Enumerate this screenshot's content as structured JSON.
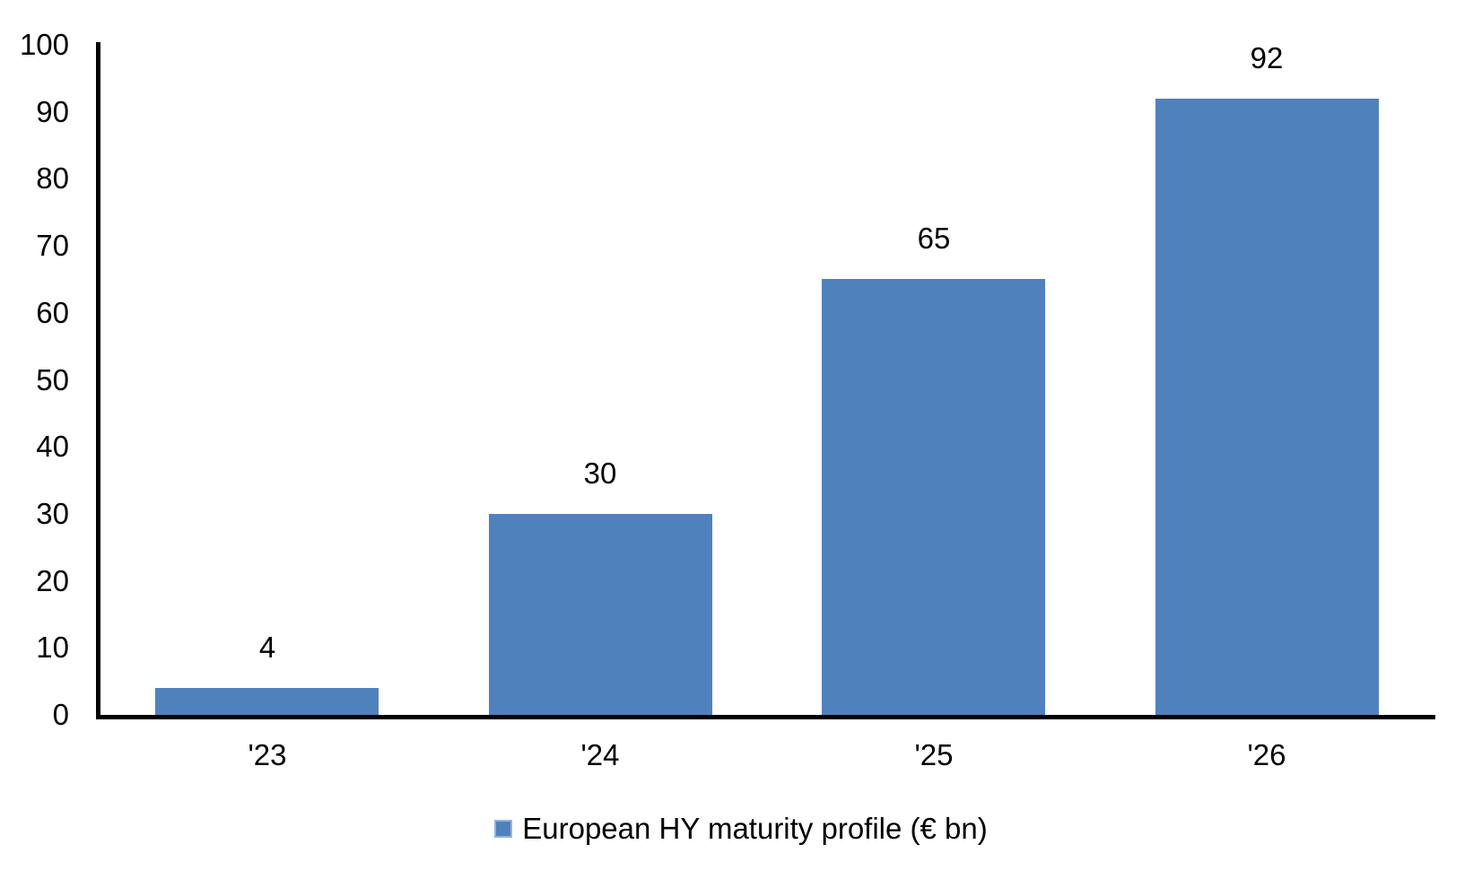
{
  "chart_data": {
    "type": "bar",
    "categories": [
      "'23",
      "'24",
      "'25",
      "'26"
    ],
    "values": [
      4,
      30,
      65,
      92
    ],
    "series_name": "European HY maturity profile (€ bn)",
    "title": "",
    "xlabel": "",
    "ylabel": "",
    "ylim": [
      0,
      100
    ],
    "ytick_step": 10,
    "ytick_labels": [
      "0",
      "10",
      "20",
      "30",
      "40",
      "50",
      "60",
      "70",
      "80",
      "90",
      "100"
    ],
    "grid": false,
    "data_labels_shown": true,
    "legend_position": "bottom-center",
    "colors": {
      "bar_fill": "#4F81BD",
      "legend_marker_fill": "#4F81BD",
      "legend_marker_border": "#95B3D7",
      "axis": "#000000",
      "text": "#000000",
      "background": "#FFFFFF"
    }
  },
  "legend": {
    "label": "European HY maturity profile (€ bn)"
  }
}
